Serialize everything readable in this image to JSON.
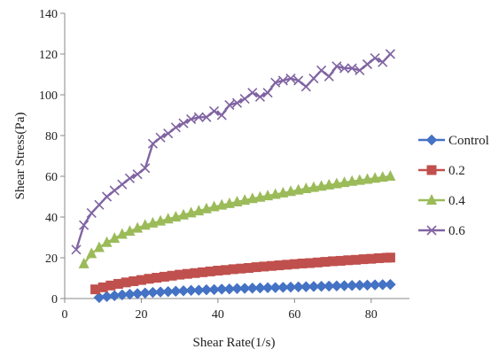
{
  "chart_data": {
    "type": "line",
    "title": "",
    "xlabel": "Shear Rate(1/s)",
    "ylabel": "Shear Stress(Pa)",
    "xlim": [
      0,
      90
    ],
    "ylim": [
      0,
      140
    ],
    "x_ticks": [
      "0",
      "20",
      "40",
      "60",
      "80"
    ],
    "y_ticks": [
      "0",
      "20",
      "40",
      "60",
      "80",
      "100",
      "120",
      "140"
    ],
    "grid": false,
    "legend_position": "right",
    "series": [
      {
        "name": "Control",
        "color": "#4472C4",
        "marker": "diamond",
        "points": [
          [
            9,
            0.5
          ],
          [
            11,
            1.0
          ],
          [
            13,
            1.4
          ],
          [
            15,
            1.8
          ],
          [
            17,
            2.1
          ],
          [
            19,
            2.4
          ],
          [
            21,
            2.7
          ],
          [
            23,
            3.0
          ],
          [
            25,
            3.2
          ],
          [
            27,
            3.4
          ],
          [
            29,
            3.6
          ],
          [
            31,
            3.8
          ],
          [
            33,
            4.0
          ],
          [
            35,
            4.1
          ],
          [
            37,
            4.3
          ],
          [
            39,
            4.4
          ],
          [
            41,
            4.6
          ],
          [
            43,
            4.7
          ],
          [
            45,
            4.9
          ],
          [
            47,
            5.0
          ],
          [
            49,
            5.1
          ],
          [
            51,
            5.2
          ],
          [
            53,
            5.3
          ],
          [
            55,
            5.4
          ],
          [
            57,
            5.5
          ],
          [
            59,
            5.6
          ],
          [
            61,
            5.7
          ],
          [
            63,
            5.8
          ],
          [
            65,
            5.9
          ],
          [
            67,
            6.0
          ],
          [
            69,
            6.1
          ],
          [
            71,
            6.2
          ],
          [
            73,
            6.3
          ],
          [
            75,
            6.4
          ],
          [
            77,
            6.5
          ],
          [
            79,
            6.6
          ],
          [
            81,
            6.7
          ],
          [
            83,
            6.8
          ],
          [
            85,
            6.9
          ]
        ]
      },
      {
        "name": "0.2",
        "color": "#C0504D",
        "marker": "square",
        "points": [
          [
            8,
            4.5
          ],
          [
            10,
            5.5
          ],
          [
            12,
            6.4
          ],
          [
            14,
            7.2
          ],
          [
            16,
            7.9
          ],
          [
            18,
            8.5
          ],
          [
            20,
            9.1
          ],
          [
            22,
            9.7
          ],
          [
            24,
            10.2
          ],
          [
            26,
            10.7
          ],
          [
            28,
            11.2
          ],
          [
            30,
            11.7
          ],
          [
            32,
            12.1
          ],
          [
            34,
            12.5
          ],
          [
            36,
            12.9
          ],
          [
            38,
            13.3
          ],
          [
            40,
            13.7
          ],
          [
            42,
            14.0
          ],
          [
            44,
            14.4
          ],
          [
            46,
            14.7
          ],
          [
            48,
            15.0
          ],
          [
            50,
            15.4
          ],
          [
            52,
            15.7
          ],
          [
            54,
            16.0
          ],
          [
            56,
            16.3
          ],
          [
            58,
            16.6
          ],
          [
            60,
            16.9
          ],
          [
            62,
            17.2
          ],
          [
            64,
            17.4
          ],
          [
            66,
            17.7
          ],
          [
            68,
            18.0
          ],
          [
            70,
            18.3
          ],
          [
            72,
            18.5
          ],
          [
            74,
            18.8
          ],
          [
            76,
            19.0
          ],
          [
            78,
            19.3
          ],
          [
            80,
            19.5
          ],
          [
            82,
            19.8
          ],
          [
            84,
            20.0
          ],
          [
            85,
            20.1
          ]
        ]
      },
      {
        "name": "0.4",
        "color": "#9BBB59",
        "marker": "triangle",
        "points": [
          [
            5,
            17
          ],
          [
            7,
            22
          ],
          [
            9,
            25
          ],
          [
            11,
            27.5
          ],
          [
            13,
            29.5
          ],
          [
            15,
            31.5
          ],
          [
            17,
            33
          ],
          [
            19,
            34.5
          ],
          [
            21,
            36
          ],
          [
            23,
            37
          ],
          [
            25,
            38
          ],
          [
            27,
            39
          ],
          [
            29,
            40
          ],
          [
            31,
            41
          ],
          [
            33,
            42
          ],
          [
            35,
            43
          ],
          [
            37,
            44
          ],
          [
            39,
            45
          ],
          [
            41,
            45.8
          ],
          [
            43,
            46.6
          ],
          [
            45,
            47.4
          ],
          [
            47,
            48.2
          ],
          [
            49,
            49
          ],
          [
            51,
            49.7
          ],
          [
            53,
            50.4
          ],
          [
            55,
            51.1
          ],
          [
            57,
            51.8
          ],
          [
            59,
            52.5
          ],
          [
            61,
            53.2
          ],
          [
            63,
            53.9
          ],
          [
            65,
            54.5
          ],
          [
            67,
            55.1
          ],
          [
            69,
            55.7
          ],
          [
            71,
            56.3
          ],
          [
            73,
            56.9
          ],
          [
            75,
            57.5
          ],
          [
            77,
            58
          ],
          [
            79,
            58.5
          ],
          [
            81,
            59
          ],
          [
            83,
            59.5
          ],
          [
            85,
            60
          ]
        ]
      },
      {
        "name": "0.6",
        "color": "#8064A2",
        "marker": "x",
        "points": [
          [
            3,
            24
          ],
          [
            5,
            36
          ],
          [
            7,
            42
          ],
          [
            9,
            46
          ],
          [
            11,
            50
          ],
          [
            13,
            53
          ],
          [
            15,
            56
          ],
          [
            17,
            59
          ],
          [
            19,
            61
          ],
          [
            21,
            64
          ],
          [
            23,
            76
          ],
          [
            25,
            79
          ],
          [
            27,
            81
          ],
          [
            29,
            84
          ],
          [
            31,
            86
          ],
          [
            33,
            88
          ],
          [
            35,
            89
          ],
          [
            37,
            89
          ],
          [
            39,
            92
          ],
          [
            41,
            90
          ],
          [
            43,
            95
          ],
          [
            45,
            96
          ],
          [
            47,
            98
          ],
          [
            49,
            101
          ],
          [
            51,
            99
          ],
          [
            53,
            101
          ],
          [
            55,
            106
          ],
          [
            57,
            107
          ],
          [
            59,
            108
          ],
          [
            61,
            107
          ],
          [
            63,
            104
          ],
          [
            65,
            108
          ],
          [
            67,
            112
          ],
          [
            69,
            109
          ],
          [
            71,
            114
          ],
          [
            73,
            113
          ],
          [
            75,
            113
          ],
          [
            77,
            112
          ],
          [
            79,
            115
          ],
          [
            81,
            118
          ],
          [
            83,
            116
          ],
          [
            85,
            120
          ]
        ]
      }
    ]
  }
}
